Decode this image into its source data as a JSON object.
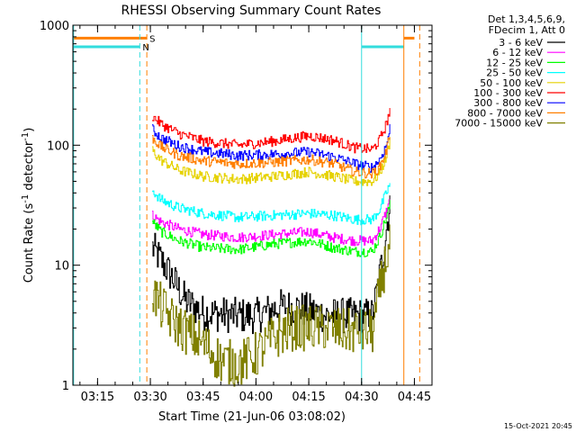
{
  "chart_data": {
    "type": "line",
    "title": "RHESSI Observing Summary Count Rates",
    "xlabel": "Start Time (21-Jun-06 03:08:02)",
    "ylabel_main": "Count Rate (s",
    "ylabel_sup1": "-1",
    "ylabel_mid": " detector",
    "ylabel_sup2": "-1",
    "ylabel_end": ")",
    "yscale": "log",
    "ylim": [
      1,
      1000
    ],
    "xlim_minutes": [
      188,
      290
    ],
    "x_ticks": [
      {
        "label": "03:15",
        "min": 195
      },
      {
        "label": "03:30",
        "min": 210
      },
      {
        "label": "03:45",
        "min": 225
      },
      {
        "label": "04:00",
        "min": 240
      },
      {
        "label": "04:15",
        "min": 255
      },
      {
        "label": "04:30",
        "min": 270
      },
      {
        "label": "04:45",
        "min": 285
      }
    ],
    "y_ticks": [
      {
        "label": "1",
        "value": 1
      },
      {
        "label": "10",
        "value": 10
      },
      {
        "label": "100",
        "value": 100
      },
      {
        "label": "1000",
        "value": 1000
      }
    ],
    "legend_header": [
      "Det 1,3,4,5,6,9,",
      "FDecim 1, Att 0"
    ],
    "series": [
      {
        "name": "3 - 6 keV",
        "color": "#000000",
        "x": [
          210.5,
          213,
          216,
          220,
          225,
          235,
          240,
          247,
          252,
          260,
          268,
          273,
          275,
          277,
          278
        ],
        "y": [
          14,
          11,
          8,
          5,
          4,
          3.8,
          3.8,
          4.5,
          4.4,
          3.8,
          3.8,
          3.8,
          8,
          20,
          35
        ]
      },
      {
        "name": "6 - 12 keV",
        "color": "#ff00ff",
        "x": [
          210.5,
          213,
          218,
          225,
          235,
          245,
          255,
          262,
          268,
          273,
          275,
          277,
          278
        ],
        "y": [
          26,
          23,
          20,
          18,
          17,
          18,
          19,
          17,
          16,
          16,
          20,
          28,
          35
        ]
      },
      {
        "name": "12 - 25 keV",
        "color": "#00ff00",
        "x": [
          210.5,
          213,
          218,
          225,
          235,
          245,
          255,
          262,
          268,
          273,
          275,
          277,
          278
        ],
        "y": [
          23,
          19,
          16,
          14,
          13.5,
          15,
          16,
          14,
          13,
          13,
          17,
          25,
          32
        ]
      },
      {
        "name": "25 - 50 keV",
        "color": "#00ffff",
        "x": [
          210.5,
          213,
          218,
          225,
          235,
          245,
          255,
          262,
          268,
          273,
          275,
          277,
          278
        ],
        "y": [
          42,
          35,
          30,
          27,
          25,
          26,
          27,
          26,
          24,
          24,
          29,
          40,
          48
        ]
      },
      {
        "name": "50 - 100 keV",
        "color": "#e6d200",
        "x": [
          210.5,
          213,
          218,
          225,
          235,
          245,
          255,
          262,
          268,
          273,
          275,
          277,
          278
        ],
        "y": [
          90,
          75,
          62,
          55,
          52,
          55,
          60,
          55,
          50,
          50,
          58,
          80,
          110
        ]
      },
      {
        "name": "100 - 300 keV",
        "color": "#ff0000",
        "x": [
          210.5,
          213,
          218,
          225,
          235,
          245,
          255,
          262,
          268,
          273,
          275,
          277,
          278
        ],
        "y": [
          175,
          150,
          125,
          108,
          100,
          108,
          120,
          110,
          95,
          92,
          110,
          150,
          200
        ]
      },
      {
        "name": "300 - 800 keV",
        "color": "#0000ff",
        "x": [
          210.5,
          213,
          218,
          225,
          235,
          245,
          255,
          262,
          268,
          273,
          275,
          277,
          278
        ],
        "y": [
          135,
          115,
          98,
          88,
          82,
          84,
          88,
          80,
          70,
          65,
          75,
          100,
          140
        ]
      },
      {
        "name": "800 - 7000 keV",
        "color": "#ff7f00",
        "x": [
          210.5,
          213,
          218,
          225,
          235,
          245,
          255,
          262,
          268,
          273,
          275,
          277,
          278
        ],
        "y": [
          115,
          97,
          82,
          74,
          70,
          72,
          76,
          70,
          60,
          58,
          65,
          90,
          125
        ]
      },
      {
        "name": "7000 - 15000 keV",
        "color": "#808000",
        "x": [
          210.5,
          213,
          216,
          220,
          225,
          230,
          235,
          240,
          245,
          250,
          255,
          260,
          265,
          270,
          273,
          275,
          277,
          278
        ],
        "y": [
          6,
          4.5,
          3.5,
          2.8,
          2.2,
          1.6,
          1.5,
          1.8,
          2.5,
          3,
          3,
          3,
          2.8,
          2.8,
          2.8,
          6,
          12,
          14
        ]
      }
    ],
    "flags": [
      {
        "label": "S",
        "color": "#ff7f00",
        "level": 780,
        "segments": [
          [
            188,
            209
          ]
        ],
        "dashed_line_min": 209
      },
      {
        "label": "N",
        "color": "#33dddd",
        "level": 660,
        "segments": [
          [
            188,
            207
          ]
        ],
        "dashed_line_min": 207
      }
    ],
    "post_bars": [
      {
        "color": "#33dddd",
        "level": 660,
        "segments": [
          [
            270,
            282
          ]
        ],
        "edge_min": 270
      },
      {
        "color": "#ff7f00",
        "level": 780,
        "segments": [
          [
            282,
            285
          ]
        ],
        "edge_min": 282
      }
    ],
    "footer_date": "15-Oct-2021 20:45"
  }
}
